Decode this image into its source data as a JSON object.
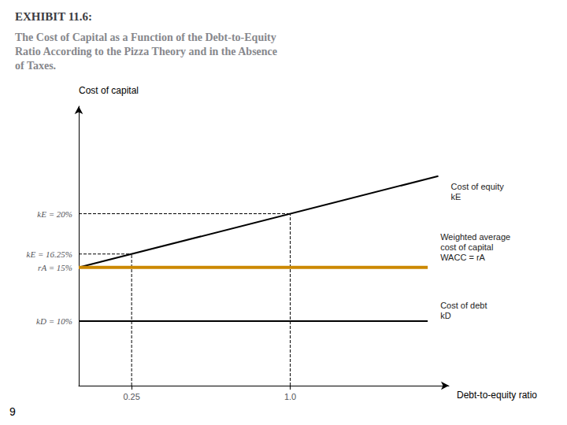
{
  "chart_data": {
    "type": "line",
    "title": "EXHIBIT 11.6:",
    "subtitle": "The Cost of Capital as a Function of the Debt-to-Equity\nRatio According to the Pizza Theory and in the Absence\nof Taxes.",
    "x_label": "Debt-to-equity ratio",
    "y_label": "Cost of capital",
    "xlim": [
      0,
      1.75
    ],
    "xticks": [
      0.25,
      {
        "value": 1.0,
        "label": "1.0"
      }
    ],
    "ylim": [
      4,
      30
    ],
    "yticks": [
      {
        "value": 10,
        "label": "kD = 10%"
      },
      {
        "value": 15,
        "label": "rA = 15%"
      },
      {
        "value": 16.25,
        "label": "kE = 16.25%"
      },
      {
        "value": 20,
        "label": "kE = 20%"
      }
    ],
    "grid": false,
    "series": [
      {
        "name": "Cost of equity\nkE",
        "color": "#000000",
        "line_style": "solid",
        "x": [
          0,
          1.7
        ],
        "values": [
          15,
          23.5
        ]
      },
      {
        "name": "Weighted average\ncost of capital\nWACC = rA",
        "color": "#cc8800",
        "line_style": "solid",
        "x": [
          0,
          1.65
        ],
        "values": [
          15,
          15
        ]
      },
      {
        "name": "Cost of debt\nkD",
        "color": "#000000",
        "line_style": "solid",
        "x": [
          0,
          1.65
        ],
        "values": [
          10,
          10
        ]
      },
      {
        "color": "#000000",
        "line_style": "dashed",
        "x": [
          0.25,
          0.25
        ],
        "values": [
          4,
          16.25
        ]
      },
      {
        "color": "#000000",
        "line_style": "dashed",
        "x": [
          1.0,
          1.0
        ],
        "values": [
          4,
          20
        ]
      },
      {
        "color": "#000000",
        "line_style": "dashed",
        "x": [
          0,
          0.25
        ],
        "values": [
          16.25,
          16.25
        ]
      },
      {
        "color": "#000000",
        "line_style": "dashed",
        "x": [
          0,
          1.0
        ],
        "values": [
          20,
          20
        ]
      }
    ],
    "annotations": [
      {
        "text": "9"
      }
    ]
  }
}
